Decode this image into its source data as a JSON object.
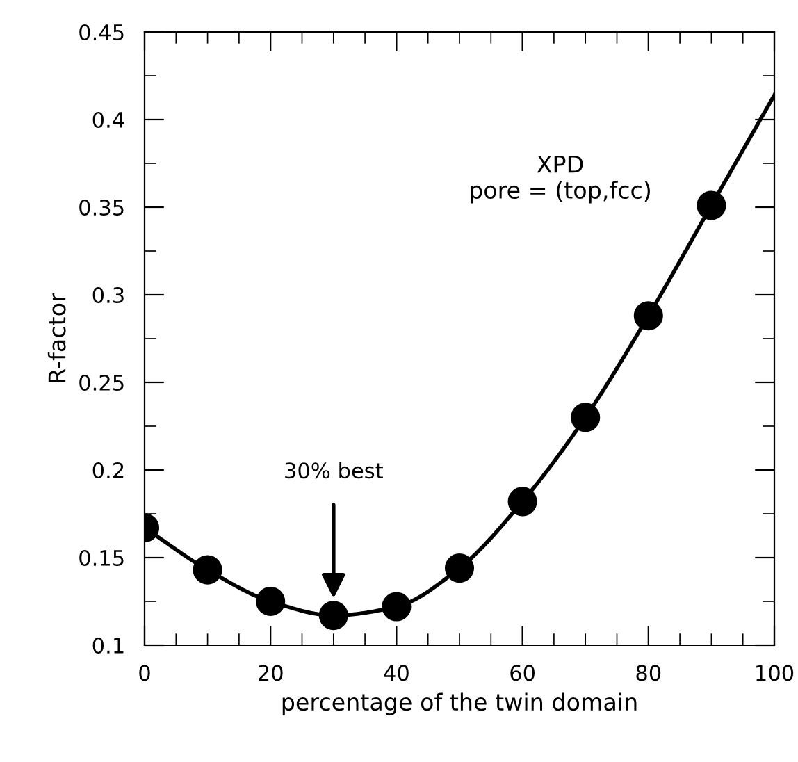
{
  "chart_data": {
    "type": "scatter",
    "xlabel": "percentage of the twin domain",
    "ylabel": "R-factor",
    "series": [
      {
        "type": "line",
        "color": "#000000",
        "marker": "none",
        "x": [
          0,
          10,
          20,
          30,
          40,
          50,
          60,
          70,
          80,
          90,
          100
        ],
        "values": [
          0.167,
          0.143,
          0.125,
          0.117,
          0.122,
          0.144,
          0.182,
          0.23,
          0.288,
          0.351,
          0.414
        ]
      },
      {
        "color": "#000000",
        "marker": "circle",
        "x": [
          0,
          10,
          20,
          30,
          40,
          50,
          60,
          70,
          80,
          90
        ],
        "values": [
          0.167,
          0.143,
          0.125,
          0.117,
          0.122,
          0.144,
          0.182,
          0.23,
          0.288,
          0.351
        ]
      }
    ],
    "xlim": [
      0,
      100
    ],
    "ylim": [
      0.1,
      0.45
    ],
    "xticks": [
      0,
      {
        "value": 5,
        "label": null
      },
      {
        "value": 10,
        "label": null
      },
      {
        "value": 15,
        "label": null
      },
      20,
      {
        "value": 25,
        "label": null
      },
      {
        "value": 30,
        "label": null
      },
      {
        "value": 35,
        "label": null
      },
      40,
      {
        "value": 45,
        "label": null
      },
      {
        "value": 50,
        "label": null
      },
      {
        "value": 55,
        "label": null
      },
      60,
      {
        "value": 65,
        "label": null
      },
      {
        "value": 70,
        "label": null
      },
      {
        "value": 75,
        "label": null
      },
      80,
      {
        "value": 85,
        "label": null
      },
      {
        "value": 90,
        "label": null
      },
      {
        "value": 95,
        "label": null
      },
      100
    ],
    "yticks": [
      0.1,
      {
        "value": 0.125,
        "label": null
      },
      0.15,
      {
        "value": 0.175,
        "label": null
      },
      0.2,
      {
        "value": 0.225,
        "label": null
      },
      0.25,
      {
        "value": 0.275,
        "label": null
      },
      0.3,
      {
        "value": 0.325,
        "label": null
      },
      0.35,
      {
        "value": 0.375,
        "label": null
      },
      0.4,
      {
        "value": 0.425,
        "label": null
      },
      0.45
    ],
    "annotations": [
      "30% best",
      "XPD\npore = (top,fcc)"
    ],
    "grid": false,
    "legend": false
  }
}
